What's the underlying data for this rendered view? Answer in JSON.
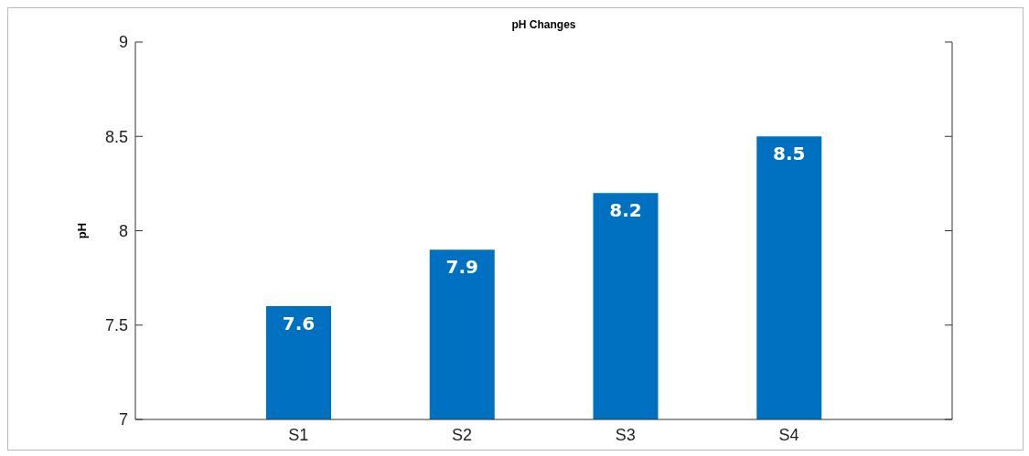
{
  "chart_data": {
    "type": "bar",
    "title": "pH Changes",
    "ylabel": "pH",
    "categories": [
      "S1",
      "S2",
      "S3",
      "S4"
    ],
    "values": [
      7.6,
      7.9,
      8.2,
      8.5
    ],
    "color": "#0070c0",
    "ylim": [
      7,
      9
    ],
    "yticks": [
      7,
      7.5,
      8,
      8.5,
      9
    ],
    "data_labels": true
  }
}
